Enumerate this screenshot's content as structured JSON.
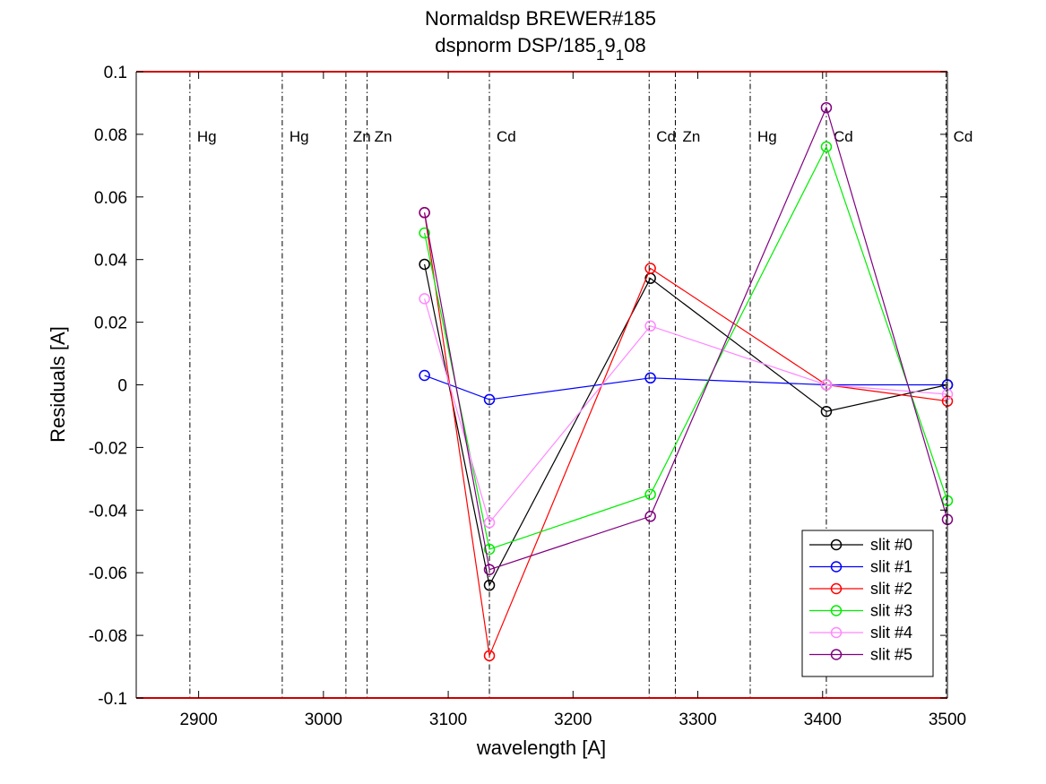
{
  "chart_data": {
    "type": "line",
    "title": "Normaldsp BREWER#185",
    "subtitle": {
      "prefix": "dspnorm DSP/185",
      "sub1": "1",
      "mid": "9",
      "sub2": "1",
      "suffix": "08"
    },
    "xlabel": "wavelength [A]",
    "ylabel": "Residuals [A]",
    "xlim": [
      2850,
      3500
    ],
    "ylim": [
      -0.1,
      0.1
    ],
    "xticks": [
      2900,
      3000,
      3100,
      3200,
      3300,
      3400,
      3500
    ],
    "xtick_labels": [
      "2900",
      "3000",
      "3100",
      "3200",
      "3300",
      "3400",
      "3500"
    ],
    "yticks": [
      -0.1,
      -0.08,
      -0.06,
      -0.04,
      -0.02,
      0,
      0.02,
      0.04,
      0.06,
      0.08,
      0.1
    ],
    "ytick_labels": [
      "-0.1",
      "-0.08",
      "-0.06",
      "-0.04",
      "-0.02",
      "0",
      "0.02",
      "0.04",
      "0.06",
      "0.08",
      "0.1"
    ],
    "grid": false,
    "legend_position": "bottom-right",
    "reference_lines": [
      {
        "x": 2893,
        "label": "Hg"
      },
      {
        "x": 2967,
        "label": "Hg"
      },
      {
        "x": 3018,
        "label": "Zn"
      },
      {
        "x": 3035,
        "label": "Zn"
      },
      {
        "x": 3133,
        "label": "Cd"
      },
      {
        "x": 3261,
        "label": "Cd"
      },
      {
        "x": 3282,
        "label": "Zn"
      },
      {
        "x": 3342,
        "label": "Hg"
      },
      {
        "x": 3403,
        "label": "Cd"
      },
      {
        "x": 3499,
        "label": "Cd"
      }
    ],
    "x": [
      3081,
      3133,
      3262,
      3403,
      3500
    ],
    "series": [
      {
        "name": "slit #0",
        "color": "#000000",
        "values": [
          0.0385,
          -0.064,
          0.034,
          -0.0085,
          0.0
        ]
      },
      {
        "name": "slit #1",
        "color": "#0000ff",
        "values": [
          0.003,
          -0.0047,
          0.0022,
          0.0,
          0.0
        ]
      },
      {
        "name": "slit #2",
        "color": "#ff0000",
        "values": [
          0.055,
          -0.0865,
          0.0372,
          0.0,
          -0.0052
        ]
      },
      {
        "name": "slit #3",
        "color": "#00ee00",
        "values": [
          0.0485,
          -0.0525,
          -0.035,
          0.076,
          -0.037
        ]
      },
      {
        "name": "slit #4",
        "color": "#ff88ff",
        "values": [
          0.0275,
          -0.044,
          0.0188,
          0.0,
          -0.003
        ]
      },
      {
        "name": "slit #5",
        "color": "#800080",
        "values": [
          0.055,
          -0.059,
          -0.042,
          0.0885,
          -0.043
        ]
      }
    ]
  }
}
